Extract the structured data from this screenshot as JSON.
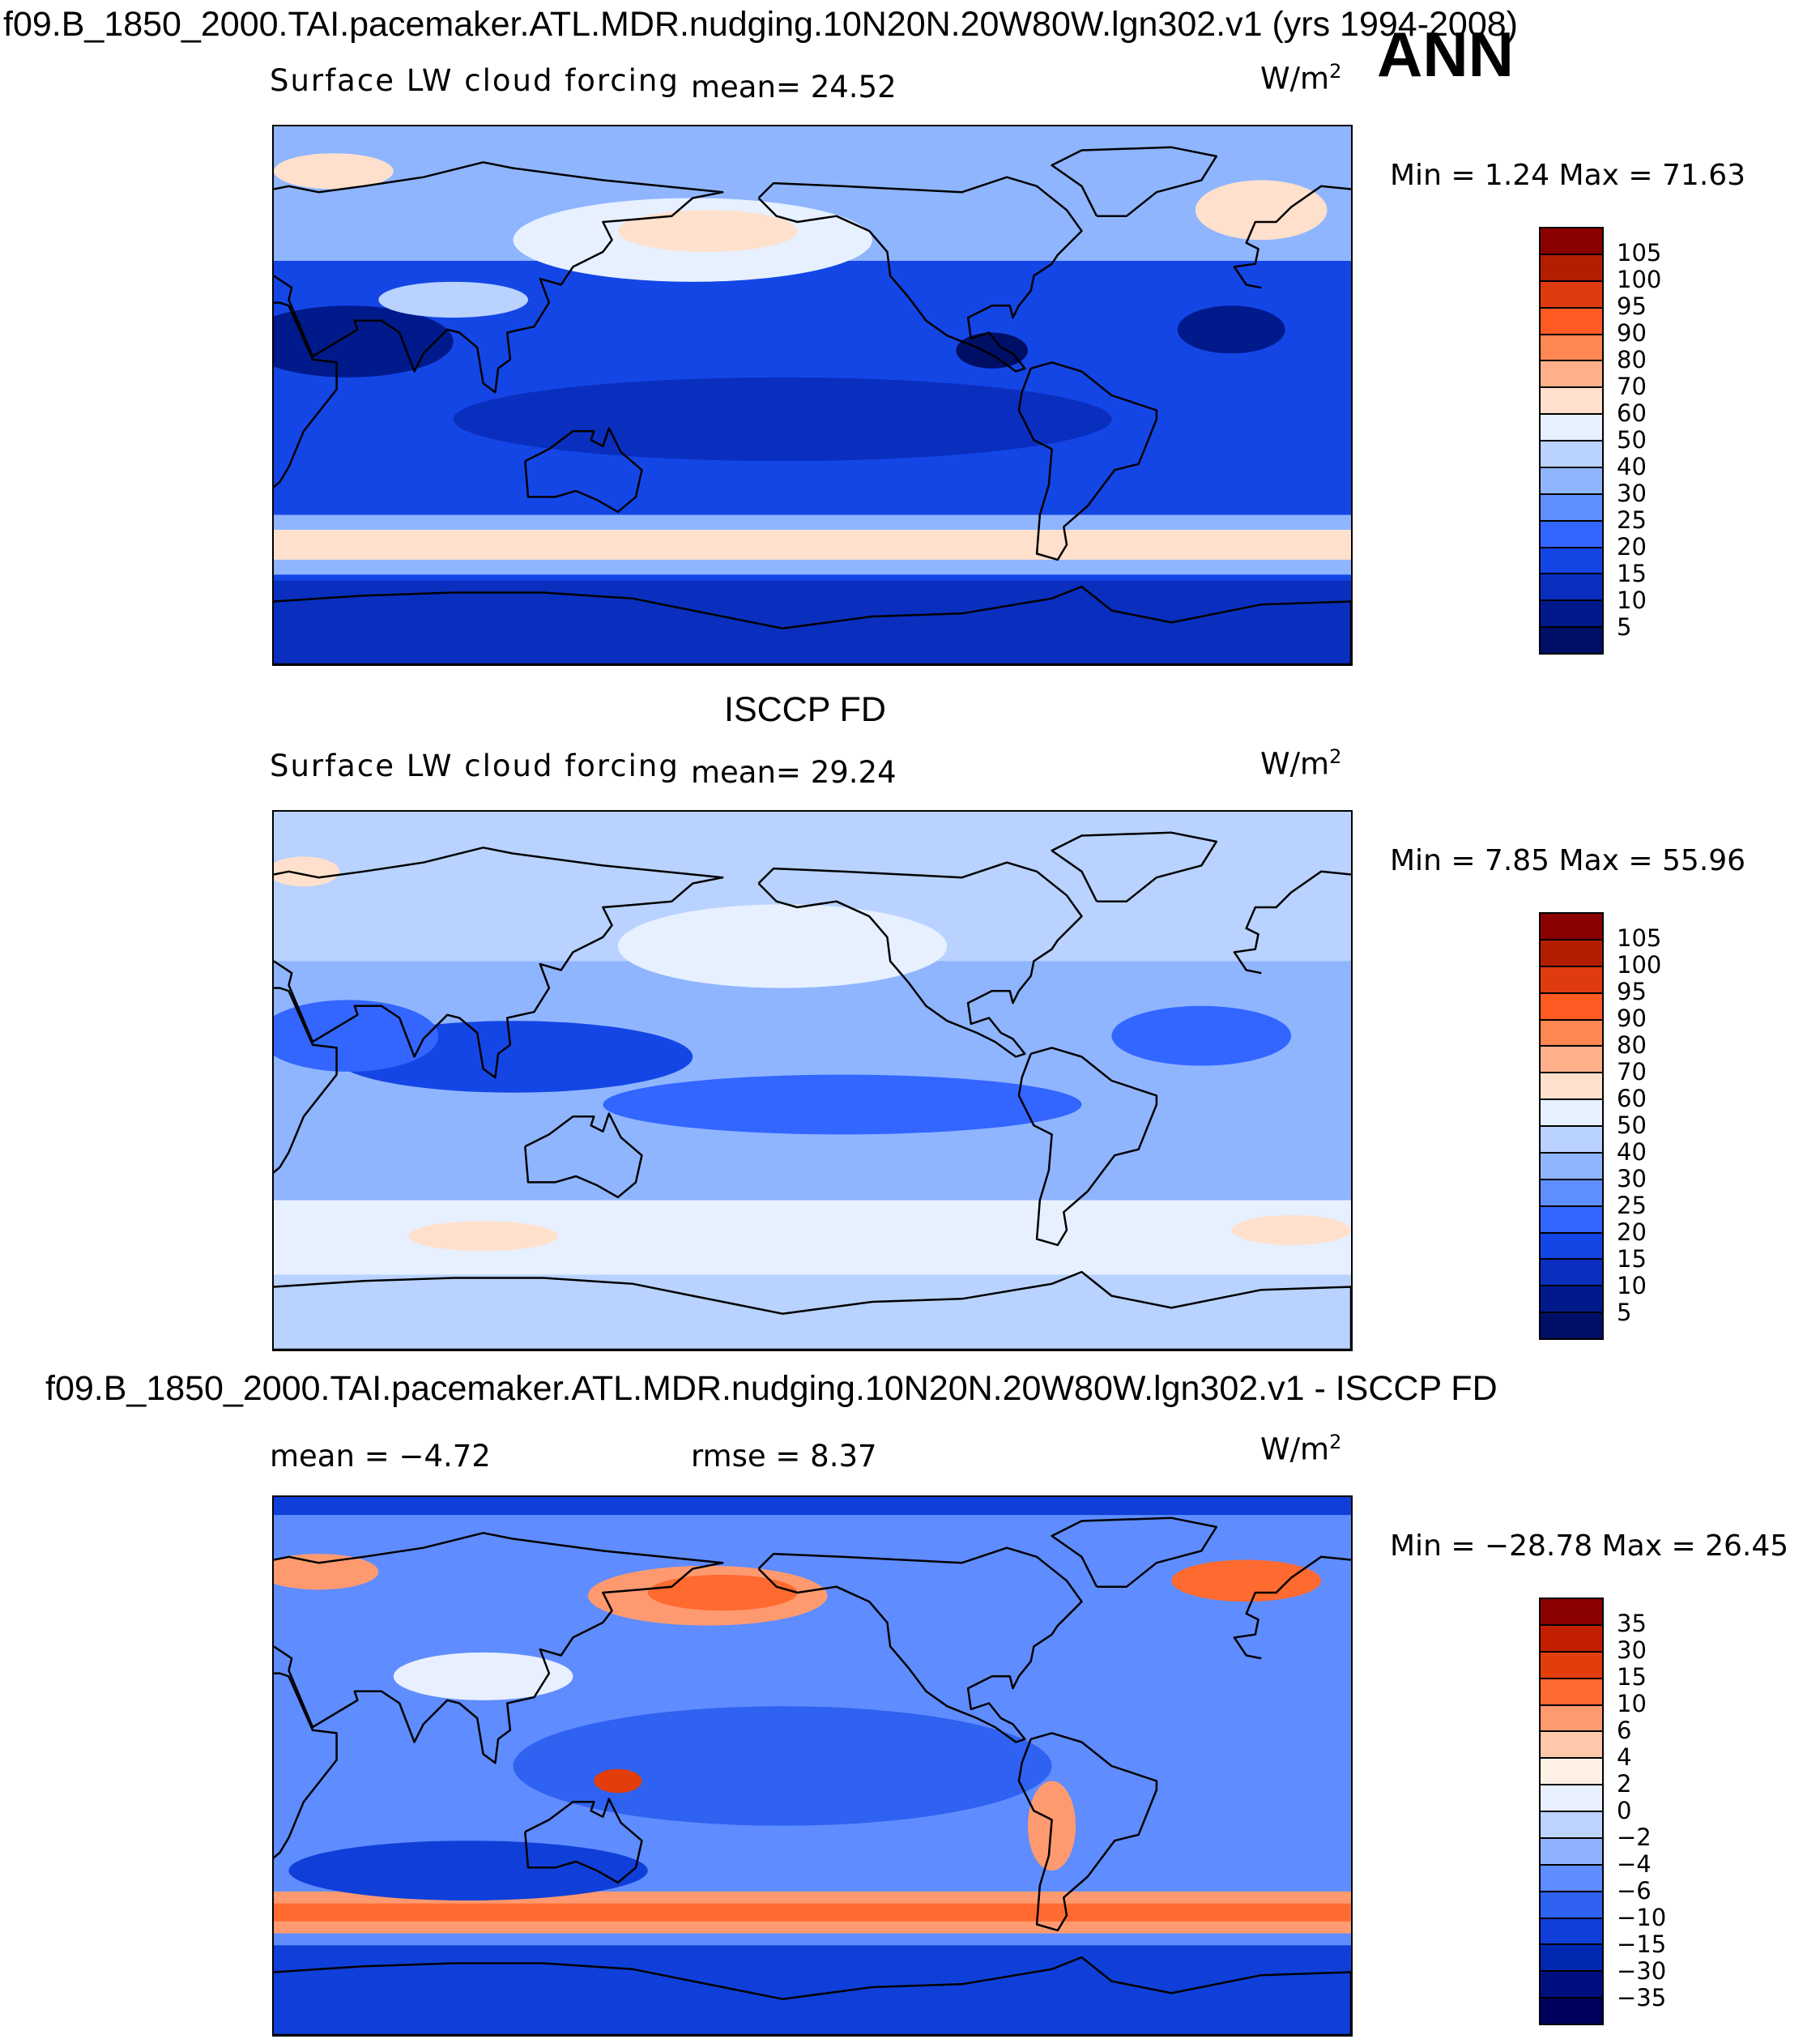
{
  "figure": {
    "title": "f09.B_1850_2000.TAI.pacemaker.ATL.MDR.nudging.10N20N.20W80W.lgn302.v1 (yrs 1994-2008)",
    "season": "ANN"
  },
  "panels": [
    {
      "id": "model",
      "heading": "",
      "label": "Surface LW cloud forcing",
      "stat1": "mean=   24.52",
      "stat2": "",
      "units_base": "W/m",
      "units_exp": "2",
      "minmax": "Min =     1.24 Max =   71.63",
      "colorbar_labels": [
        "105",
        "100",
        "95",
        "90",
        "80",
        "70",
        "60",
        "50",
        "40",
        "30",
        "25",
        "20",
        "15",
        "10",
        "5"
      ],
      "palette": "abs"
    },
    {
      "id": "obs",
      "heading": "ISCCP FD",
      "label": "Surface LW cloud forcing",
      "stat1": "mean=   29.24",
      "stat2": "",
      "units_base": "W/m",
      "units_exp": "2",
      "minmax": "Min =     7.85 Max =   55.96",
      "colorbar_labels": [
        "105",
        "100",
        "95",
        "90",
        "80",
        "70",
        "60",
        "50",
        "40",
        "30",
        "25",
        "20",
        "15",
        "10",
        "5"
      ],
      "palette": "abs"
    },
    {
      "id": "diff",
      "heading": "f09.B_1850_2000.TAI.pacemaker.ATL.MDR.nudging.10N20N.20W80W.lgn302.v1 - ISCCP FD",
      "label": "",
      "stat1": "mean =   −4.72",
      "stat2": "rmse =     8.37",
      "units_base": "W/m",
      "units_exp": "2",
      "minmax": "Min = −28.78 Max =   26.45",
      "colorbar_labels": [
        "35",
        "30",
        "15",
        "10",
        "6",
        "4",
        "2",
        "0",
        "−2",
        "−4",
        "−6",
        "−10",
        "−15",
        "−30",
        "−35"
      ],
      "palette": "diff"
    }
  ],
  "colors": {
    "abs": [
      "#8b0000",
      "#b31e00",
      "#e03a10",
      "#ff5a22",
      "#ff8752",
      "#ffb08a",
      "#ffe0cc",
      "#e6f0ff",
      "#b9d2ff",
      "#8fb5ff",
      "#5f8fff",
      "#3366ff",
      "#1446e6",
      "#0a2fbf",
      "#001a8c",
      "#000f66"
    ],
    "diff": [
      "#8b0000",
      "#c41e00",
      "#e23d0a",
      "#ff6a30",
      "#ff9a70",
      "#ffc8aa",
      "#fff0e6",
      "#e8f0ff",
      "#bcd2ff",
      "#8fb2ff",
      "#5f8cff",
      "#2f62f0",
      "#0f3fd8",
      "#0028b0",
      "#000f80",
      "#00005f"
    ],
    "coast": "#000000"
  }
}
